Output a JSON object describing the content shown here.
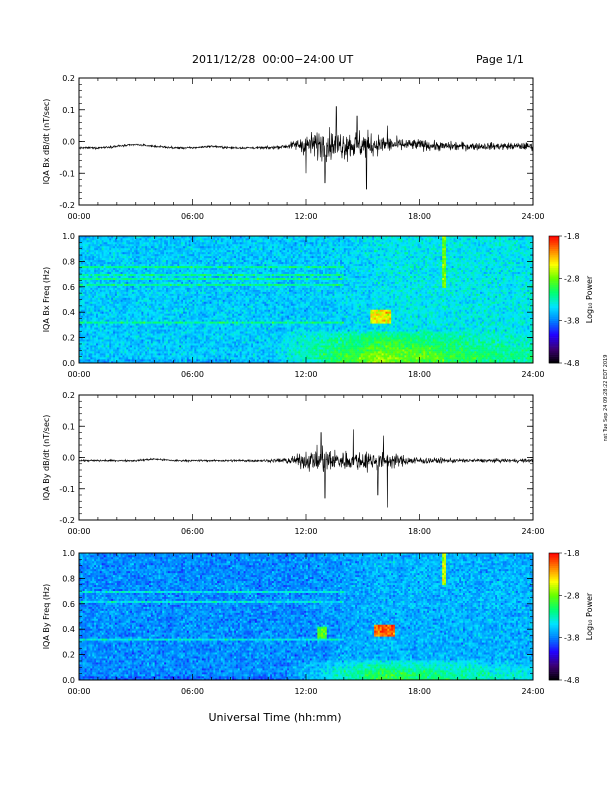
{
  "header": {
    "date_range": "2011/12/28  00:00−24:00 UT",
    "page_label": "Page 1/1"
  },
  "footer": {
    "xlabel": "Universal Time (hh:mm)",
    "side_note": "nst Tue Sep 24 09:28:22 EDT 2019"
  },
  "colorbar_label": "Log₁₀ Power",
  "colors": {
    "colormap": [
      "#000000",
      "#3b0072",
      "#2200ff",
      "#0080ff",
      "#00e5ff",
      "#00ff70",
      "#66ff00",
      "#ffff00",
      "#ff8000",
      "#ff0000"
    ]
  },
  "chart_data": [
    {
      "type": "line",
      "ylabel": "IQA Bx dB/dt (nT/sec)",
      "xlim": [
        0,
        24
      ],
      "ylim": [
        -0.2,
        0.2
      ],
      "x_ticks": [
        "00:00",
        "06:00",
        "12:00",
        "18:00",
        "24:00"
      ],
      "y_ticks": [
        "0.2",
        "0.1",
        "0.0",
        "-0.1",
        "-0.2"
      ],
      "y_tick_values": [
        0.2,
        0.1,
        0.0,
        -0.1,
        -0.2
      ],
      "series": [
        {
          "x": [
            0,
            1,
            2,
            3,
            4,
            5,
            6,
            7,
            8,
            9,
            10,
            11,
            11.5,
            12,
            12.5,
            13,
            13.5,
            14,
            14.5,
            15,
            15.5,
            16,
            16.5,
            17,
            17.5,
            18,
            19,
            20,
            21,
            22,
            23,
            24
          ],
          "baseline": [
            -0.02,
            -0.02,
            -0.015,
            -0.01,
            -0.015,
            -0.02,
            -0.02,
            -0.015,
            -0.02,
            -0.02,
            -0.02,
            -0.015,
            -0.01,
            -0.01,
            -0.01,
            -0.01,
            -0.01,
            -0.01,
            -0.01,
            -0.01,
            -0.01,
            -0.01,
            -0.01,
            -0.01,
            -0.01,
            -0.01,
            -0.015,
            -0.015,
            -0.015,
            -0.015,
            -0.015,
            -0.015
          ],
          "amplitude": [
            0.005,
            0.006,
            0.006,
            0.005,
            0.005,
            0.006,
            0.005,
            0.005,
            0.006,
            0.006,
            0.008,
            0.012,
            0.03,
            0.06,
            0.07,
            0.09,
            0.07,
            0.08,
            0.08,
            0.08,
            0.06,
            0.05,
            0.04,
            0.035,
            0.03,
            0.03,
            0.025,
            0.025,
            0.02,
            0.02,
            0.02,
            0.02
          ],
          "spikes": [
            [
              13.6,
              0.11
            ],
            [
              13.0,
              -0.13
            ],
            [
              15.2,
              -0.15
            ],
            [
              12.0,
              -0.1
            ],
            [
              14.7,
              0.08
            ],
            [
              16.3,
              0.05
            ]
          ]
        }
      ]
    },
    {
      "type": "heatmap",
      "ylabel": "IQA Bx Freq (Hz)",
      "xlim": [
        0,
        24
      ],
      "ylim": [
        0.0,
        1.0
      ],
      "x_ticks": [
        "00:00",
        "06:00",
        "12:00",
        "18:00",
        "24:00"
      ],
      "y_ticks": [
        "1.0",
        "0.8",
        "0.6",
        "0.4",
        "0.2",
        "0.0"
      ],
      "y_tick_values": [
        1.0,
        0.8,
        0.6,
        0.4,
        0.2,
        0.0
      ],
      "colorbar_ticks": [
        "-1.8",
        "-2.8",
        "-3.8",
        "-4.8"
      ],
      "colorbar_tick_values": [
        -1.8,
        -2.8,
        -3.8,
        -4.8
      ],
      "zlim": [
        -4.8,
        -1.8
      ],
      "features": {
        "background": -3.55,
        "low_freq_enhancement": {
          "start_hour": 10,
          "peak_hour": 16,
          "end_hour": 22,
          "below_hz": 0.25,
          "peak": -2.6
        },
        "hot_spot": {
          "hour": 16.0,
          "freq_low": 0.32,
          "freq_high": 0.42,
          "value": -2.6
        },
        "vertical_streak": {
          "hour": 19.3,
          "freq_low": 0.6,
          "freq_high": 1.0,
          "value": -2.8
        },
        "horizontal_lines_hz": [
          0.32,
          0.62,
          0.66,
          0.7,
          0.76,
          0.86
        ],
        "active_band_start_hour": 13
      }
    },
    {
      "type": "line",
      "ylabel": "IQA By dB/dt (nT/sec)",
      "xlim": [
        0,
        24
      ],
      "ylim": [
        -0.2,
        0.2
      ],
      "x_ticks": [
        "00:00",
        "06:00",
        "12:00",
        "18:00",
        "24:00"
      ],
      "y_ticks": [
        "0.2",
        "0.1",
        "0.0",
        "-0.1",
        "-0.2"
      ],
      "y_tick_values": [
        0.2,
        0.1,
        0.0,
        -0.1,
        -0.2
      ],
      "series": [
        {
          "x": [
            0,
            1,
            2,
            3,
            4,
            5,
            6,
            7,
            8,
            9,
            10,
            10.5,
            11,
            11.5,
            12,
            12.5,
            13,
            13.5,
            14,
            14.5,
            15,
            15.5,
            16,
            16.5,
            17,
            17.5,
            18,
            19,
            20,
            21,
            22,
            23,
            24
          ],
          "baseline": [
            -0.01,
            -0.01,
            -0.01,
            -0.01,
            -0.005,
            -0.01,
            -0.01,
            -0.01,
            -0.01,
            -0.01,
            -0.01,
            -0.01,
            -0.01,
            -0.01,
            -0.01,
            -0.01,
            -0.01,
            -0.01,
            -0.01,
            -0.01,
            -0.01,
            -0.01,
            -0.01,
            -0.01,
            -0.01,
            -0.01,
            -0.01,
            -0.01,
            -0.01,
            -0.01,
            -0.01,
            -0.01,
            -0.01
          ],
          "amplitude": [
            0.005,
            0.006,
            0.005,
            0.005,
            0.005,
            0.006,
            0.005,
            0.005,
            0.006,
            0.007,
            0.008,
            0.01,
            0.02,
            0.03,
            0.05,
            0.06,
            0.07,
            0.06,
            0.05,
            0.05,
            0.06,
            0.05,
            0.05,
            0.04,
            0.03,
            0.025,
            0.02,
            0.015,
            0.012,
            0.01,
            0.01,
            0.01,
            0.01
          ],
          "spikes": [
            [
              12.8,
              0.08
            ],
            [
              13.0,
              -0.13
            ],
            [
              14.5,
              0.09
            ],
            [
              15.8,
              -0.12
            ],
            [
              16.3,
              -0.16
            ],
            [
              16.1,
              0.07
            ]
          ]
        }
      ]
    },
    {
      "type": "heatmap",
      "ylabel": "IQA By Freq (Hz)",
      "xlim": [
        0,
        24
      ],
      "ylim": [
        0.0,
        1.0
      ],
      "x_ticks": [
        "00:00",
        "06:00",
        "12:00",
        "18:00",
        "24:00"
      ],
      "y_ticks": [
        "1.0",
        "0.8",
        "0.6",
        "0.4",
        "0.2",
        "0.0"
      ],
      "y_tick_values": [
        1.0,
        0.8,
        0.6,
        0.4,
        0.2,
        0.0
      ],
      "colorbar_ticks": [
        "-1.8",
        "-2.8",
        "-3.8",
        "-4.8"
      ],
      "colorbar_tick_values": [
        -1.8,
        -2.8,
        -3.8,
        -4.8
      ],
      "zlim": [
        -4.8,
        -1.8
      ],
      "features": {
        "background": -3.75,
        "low_freq_enhancement": {
          "start_hour": 11,
          "peak_hour": 16,
          "end_hour": 24,
          "below_hz": 0.15,
          "peak": -2.8
        },
        "hot_spot": {
          "hour": 16.1,
          "freq_low": 0.34,
          "freq_high": 0.44,
          "value": -2.2
        },
        "second_spot": {
          "hour": 12.8,
          "freq_low": 0.33,
          "freq_high": 0.42,
          "value": -2.9
        },
        "vertical_streak": {
          "hour": 19.3,
          "freq_low": 0.75,
          "freq_high": 1.0,
          "value": -2.6
        },
        "horizontal_lines_hz": [
          0.32,
          0.62,
          0.7
        ],
        "active_band_start_hour": 12
      }
    }
  ]
}
